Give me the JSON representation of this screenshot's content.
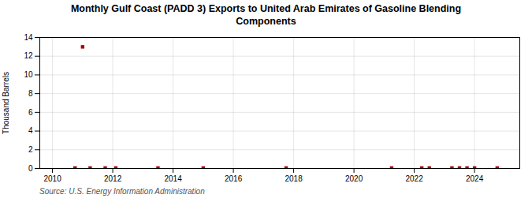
{
  "chart_data": {
    "type": "scatter",
    "title": "Monthly Gulf Coast (PADD 3) Exports to United Arab Emirates of Gasoline Blending\nComponents",
    "ylabel": "Thousand Barrels",
    "source": "Source: U.S. Energy Information Administration",
    "x": [
      2010.75,
      2011.0,
      2011.25,
      2011.75,
      2012.1,
      2013.5,
      2015.0,
      2017.75,
      2021.25,
      2022.25,
      2022.5,
      2023.25,
      2023.5,
      2023.75,
      2024.0,
      2024.75
    ],
    "values": [
      0.05,
      13.0,
      0.05,
      0.05,
      0.05,
      0.05,
      0.05,
      0.05,
      0.05,
      0.05,
      0.05,
      0.05,
      0.05,
      0.05,
      0.05,
      0.05
    ],
    "color": "#aa0000",
    "marker": "square",
    "xlim": [
      2009.58,
      2025.5
    ],
    "ylim": [
      0,
      14
    ],
    "xticks": [
      2010,
      2012,
      2014,
      2016,
      2018,
      2020,
      2022,
      2024
    ],
    "yticks": [
      0,
      2,
      4,
      6,
      8,
      10,
      12,
      14
    ],
    "grid": true
  }
}
